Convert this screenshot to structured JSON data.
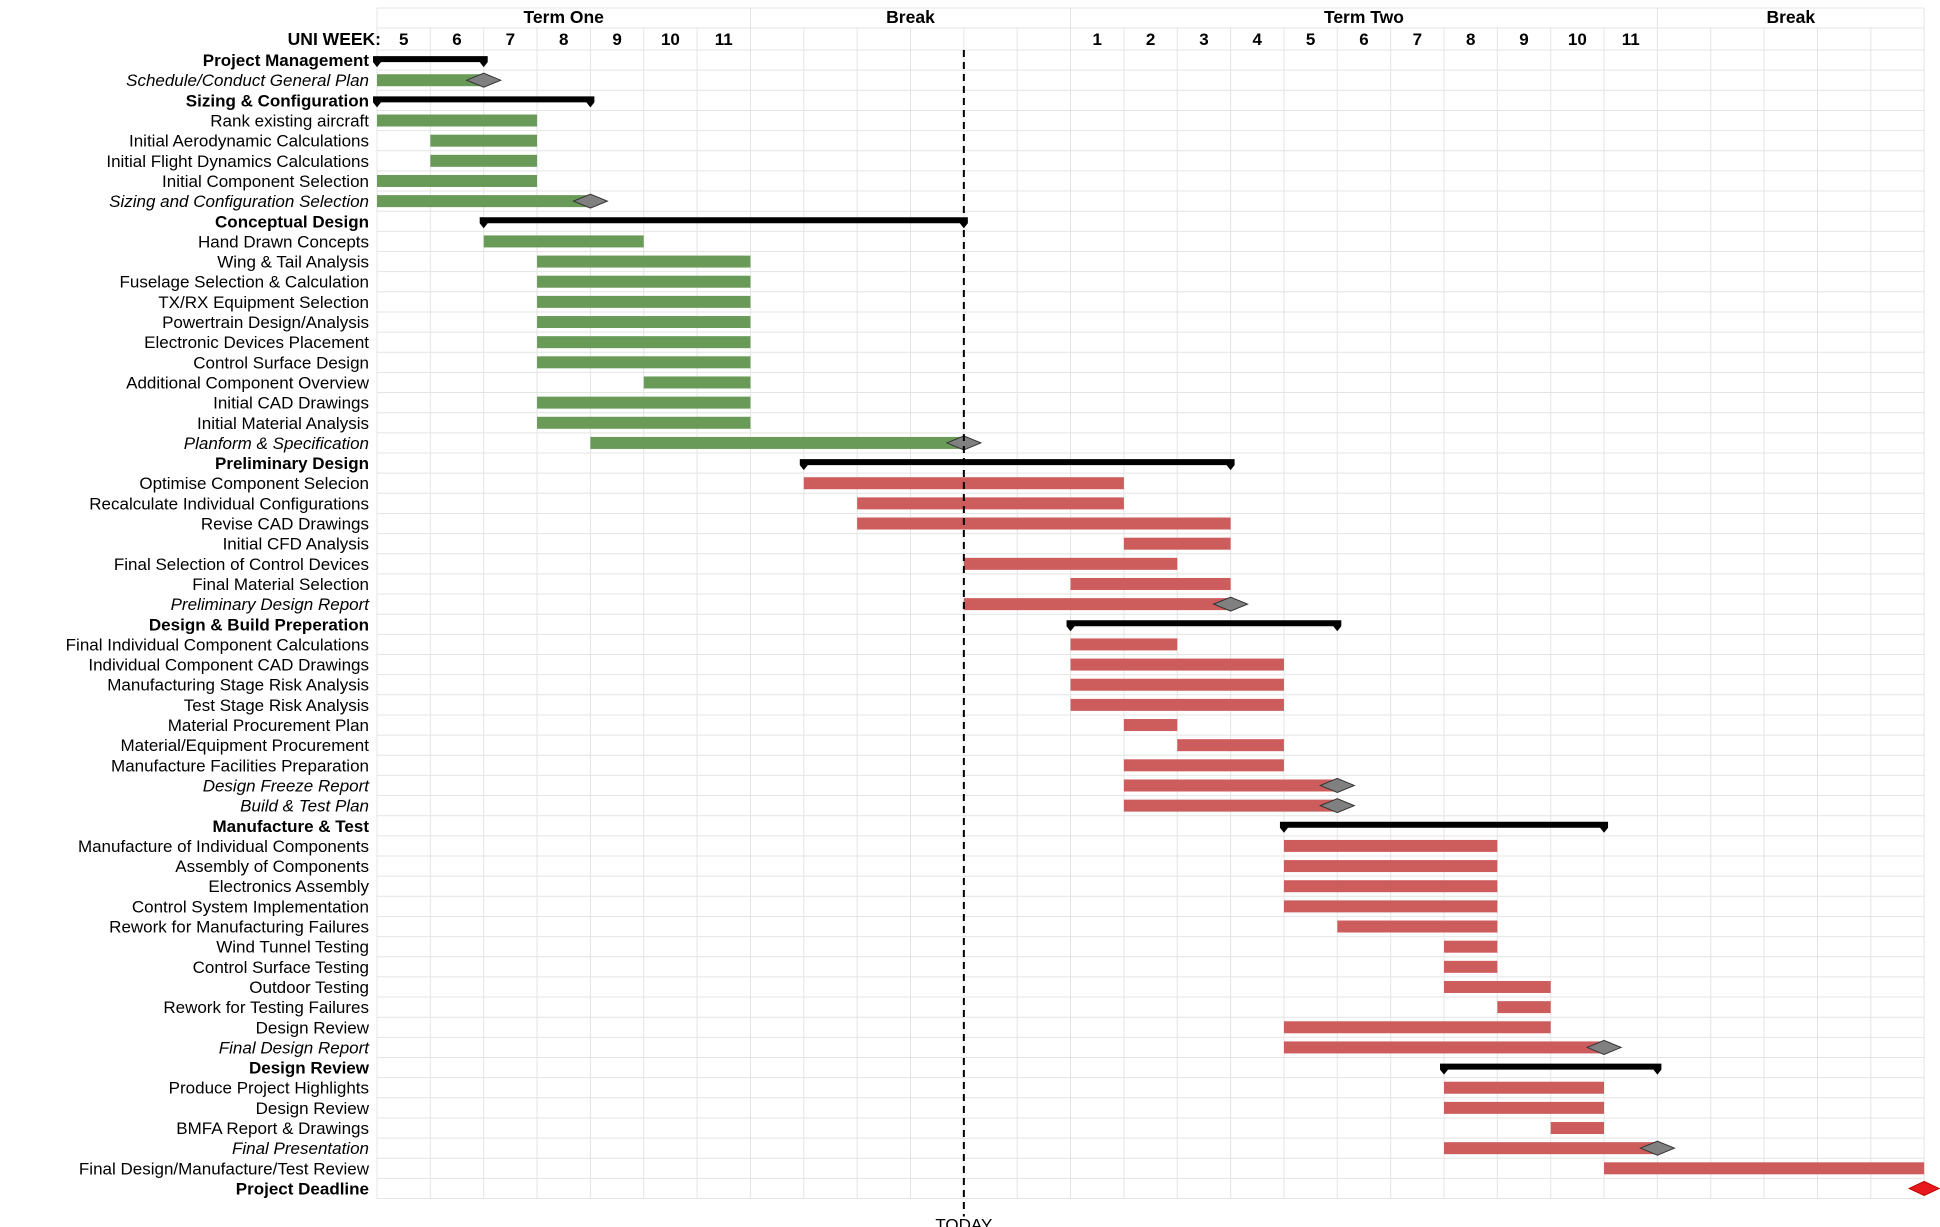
{
  "chart_data": {
    "type": "gantt",
    "week_axis_label": "UNI WEEK:",
    "today_label": "TODAY",
    "today_week_index": 11,
    "column_count": 29,
    "periods": [
      {
        "label": "Term One",
        "start": 0,
        "end": 7
      },
      {
        "label": "Break",
        "start": 7,
        "end": 13
      },
      {
        "label": "Term Two",
        "start": 13,
        "end": 24
      },
      {
        "label": "Break",
        "start": 24,
        "end": 29
      }
    ],
    "weeks": [
      {
        "index": 0,
        "label": "5"
      },
      {
        "index": 1,
        "label": "6"
      },
      {
        "index": 2,
        "label": "7"
      },
      {
        "index": 3,
        "label": "8"
      },
      {
        "index": 4,
        "label": "9"
      },
      {
        "index": 5,
        "label": "10"
      },
      {
        "index": 6,
        "label": "11"
      },
      {
        "index": 13,
        "label": "1"
      },
      {
        "index": 14,
        "label": "2"
      },
      {
        "index": 15,
        "label": "3"
      },
      {
        "index": 16,
        "label": "4"
      },
      {
        "index": 17,
        "label": "5"
      },
      {
        "index": 18,
        "label": "6"
      },
      {
        "index": 19,
        "label": "7"
      },
      {
        "index": 20,
        "label": "8"
      },
      {
        "index": 21,
        "label": "9"
      },
      {
        "index": 22,
        "label": "10"
      },
      {
        "index": 23,
        "label": "11"
      }
    ],
    "colors": {
      "complete": "#6a9a58",
      "planned": "#cd5c5c",
      "summary": "#000000",
      "milestone": "#808080",
      "deadline": "#e8191c",
      "grid": "#e4e4e4"
    },
    "tasks": [
      {
        "label": "Project Management",
        "type": "summary",
        "start": 0,
        "end": 2
      },
      {
        "label": "Schedule/Conduct General Plan",
        "type": "milestone",
        "start": 0,
        "end": 2,
        "status": "complete"
      },
      {
        "label": "Sizing & Configuration",
        "type": "summary",
        "start": 0,
        "end": 4
      },
      {
        "label": "Rank existing aircraft",
        "type": "task",
        "start": 0,
        "end": 3,
        "status": "complete"
      },
      {
        "label": "Initial Aerodynamic Calculations",
        "type": "task",
        "start": 1,
        "end": 3,
        "status": "complete"
      },
      {
        "label": "Initial Flight Dynamics Calculations",
        "type": "task",
        "start": 1,
        "end": 3,
        "status": "complete"
      },
      {
        "label": "Initial Component Selection",
        "type": "task",
        "start": 0,
        "end": 3,
        "status": "complete"
      },
      {
        "label": "Sizing and Configuration Selection",
        "type": "milestone",
        "start": 0,
        "end": 4,
        "status": "complete"
      },
      {
        "label": "Conceptual Design",
        "type": "summary",
        "start": 2,
        "end": 11
      },
      {
        "label": "Hand Drawn Concepts",
        "type": "task",
        "start": 2,
        "end": 5,
        "status": "complete"
      },
      {
        "label": "Wing & Tail Analysis",
        "type": "task",
        "start": 3,
        "end": 7,
        "status": "complete"
      },
      {
        "label": "Fuselage Selection & Calculation",
        "type": "task",
        "start": 3,
        "end": 7,
        "status": "complete"
      },
      {
        "label": "TX/RX Equipment Selection",
        "type": "task",
        "start": 3,
        "end": 7,
        "status": "complete"
      },
      {
        "label": "Powertrain Design/Analysis",
        "type": "task",
        "start": 3,
        "end": 7,
        "status": "complete"
      },
      {
        "label": "Electronic Devices Placement",
        "type": "task",
        "start": 3,
        "end": 7,
        "status": "complete"
      },
      {
        "label": "Control Surface Design",
        "type": "task",
        "start": 3,
        "end": 7,
        "status": "complete"
      },
      {
        "label": "Additional Component Overview",
        "type": "task",
        "start": 5,
        "end": 7,
        "status": "complete"
      },
      {
        "label": "Initial CAD Drawings",
        "type": "task",
        "start": 3,
        "end": 7,
        "status": "complete"
      },
      {
        "label": "Initial Material Analysis",
        "type": "task",
        "start": 3,
        "end": 7,
        "status": "complete"
      },
      {
        "label": "Planform & Specification",
        "type": "milestone",
        "start": 4,
        "end": 11,
        "status": "complete"
      },
      {
        "label": "Preliminary Design",
        "type": "summary",
        "start": 8,
        "end": 16
      },
      {
        "label": "Optimise Component Selecion",
        "type": "task",
        "start": 8,
        "end": 14,
        "status": "planned"
      },
      {
        "label": "Recalculate Individual Configurations",
        "type": "task",
        "start": 9,
        "end": 14,
        "status": "planned"
      },
      {
        "label": "Revise CAD Drawings",
        "type": "task",
        "start": 9,
        "end": 16,
        "status": "planned"
      },
      {
        "label": "Initial CFD Analysis",
        "type": "task",
        "start": 14,
        "end": 16,
        "status": "planned"
      },
      {
        "label": "Final Selection of Control Devices",
        "type": "task",
        "start": 11,
        "end": 15,
        "status": "planned"
      },
      {
        "label": "Final Material Selection",
        "type": "task",
        "start": 13,
        "end": 16,
        "status": "planned"
      },
      {
        "label": "Preliminary Design Report",
        "type": "milestone",
        "start": 11,
        "end": 16,
        "status": "planned"
      },
      {
        "label": "Design & Build Preperation",
        "type": "summary",
        "start": 13,
        "end": 18
      },
      {
        "label": "Final Individual Component Calculations",
        "type": "task",
        "start": 13,
        "end": 15,
        "status": "planned"
      },
      {
        "label": "Individual Component CAD Drawings",
        "type": "task",
        "start": 13,
        "end": 17,
        "status": "planned"
      },
      {
        "label": "Manufacturing Stage Risk Analysis",
        "type": "task",
        "start": 13,
        "end": 17,
        "status": "planned"
      },
      {
        "label": "Test Stage Risk Analysis",
        "type": "task",
        "start": 13,
        "end": 17,
        "status": "planned"
      },
      {
        "label": "Material Procurement Plan",
        "type": "task",
        "start": 14,
        "end": 15,
        "status": "planned"
      },
      {
        "label": "Material/Equipment Procurement",
        "type": "task",
        "start": 15,
        "end": 17,
        "status": "planned"
      },
      {
        "label": "Manufacture Facilities Preparation",
        "type": "task",
        "start": 14,
        "end": 17,
        "status": "planned"
      },
      {
        "label": "Design Freeze Report",
        "type": "milestone",
        "start": 14,
        "end": 18,
        "status": "planned"
      },
      {
        "label": "Build & Test Plan",
        "type": "milestone",
        "start": 14,
        "end": 18,
        "status": "planned"
      },
      {
        "label": "Manufacture & Test",
        "type": "summary",
        "start": 17,
        "end": 23
      },
      {
        "label": "Manufacture of Individual Components",
        "type": "task",
        "start": 17,
        "end": 21,
        "status": "planned"
      },
      {
        "label": "Assembly of Components",
        "type": "task",
        "start": 17,
        "end": 21,
        "status": "planned"
      },
      {
        "label": "Electronics Assembly",
        "type": "task",
        "start": 17,
        "end": 21,
        "status": "planned"
      },
      {
        "label": "Control System Implementation",
        "type": "task",
        "start": 17,
        "end": 21,
        "status": "planned"
      },
      {
        "label": "Rework for Manufacturing Failures",
        "type": "task",
        "start": 18,
        "end": 21,
        "status": "planned"
      },
      {
        "label": "Wind Tunnel Testing",
        "type": "task",
        "start": 20,
        "end": 21,
        "status": "planned"
      },
      {
        "label": "Control Surface Testing",
        "type": "task",
        "start": 20,
        "end": 21,
        "status": "planned"
      },
      {
        "label": "Outdoor Testing",
        "type": "task",
        "start": 20,
        "end": 22,
        "status": "planned"
      },
      {
        "label": "Rework for Testing Failures",
        "type": "task",
        "start": 21,
        "end": 22,
        "status": "planned"
      },
      {
        "label": "Design Review",
        "type": "task",
        "start": 17,
        "end": 22,
        "status": "planned"
      },
      {
        "label": "Final Design Report",
        "type": "milestone",
        "start": 17,
        "end": 23,
        "status": "planned"
      },
      {
        "label": "Design Review",
        "type": "summary",
        "start": 20,
        "end": 24
      },
      {
        "label": "Produce Project Highlights",
        "type": "task",
        "start": 20,
        "end": 23,
        "status": "planned"
      },
      {
        "label": "Design Review",
        "type": "task",
        "start": 20,
        "end": 23,
        "status": "planned"
      },
      {
        "label": "BMFA Report & Drawings",
        "type": "task",
        "start": 22,
        "end": 23,
        "status": "planned"
      },
      {
        "label": "Final Presentation",
        "type": "milestone",
        "start": 20,
        "end": 24,
        "status": "planned"
      },
      {
        "label": "Final Design/Manufacture/Test Review",
        "type": "task",
        "start": 23,
        "end": 29,
        "status": "planned"
      },
      {
        "label": "Project Deadline",
        "type": "deadline",
        "start": 29,
        "end": 29
      }
    ]
  }
}
